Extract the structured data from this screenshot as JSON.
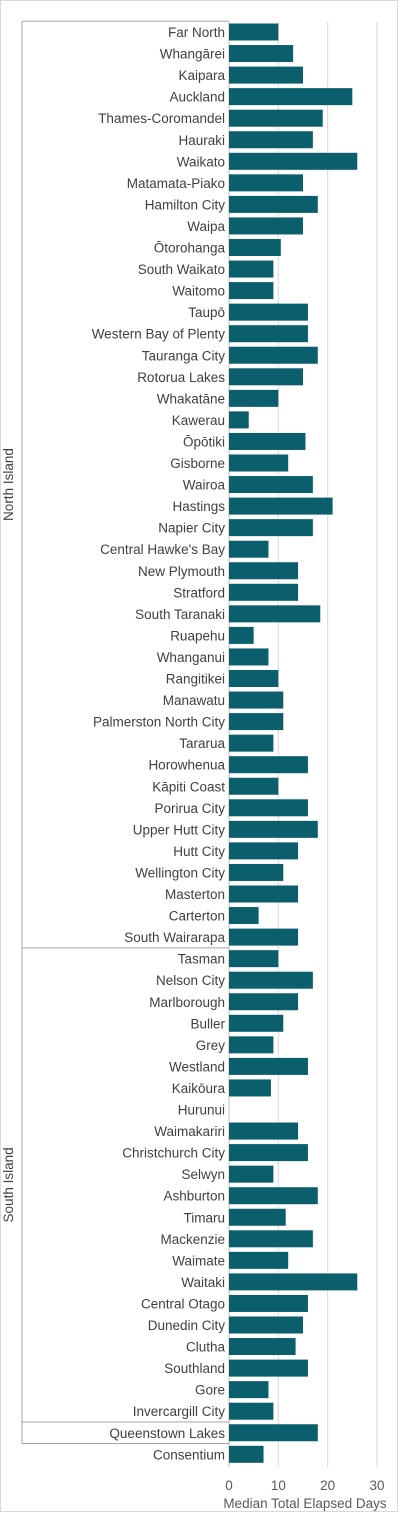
{
  "chart_data": {
    "type": "bar",
    "orientation": "horizontal",
    "xlabel": "Median Total Elapsed Days",
    "xlim": [
      0,
      30
    ],
    "xticks": [
      0,
      10,
      20,
      30
    ],
    "grid": true,
    "bar_color": "#0b5e6b",
    "groups": [
      {
        "name": "North Island",
        "start": 0,
        "end": 42
      },
      {
        "name": "South Island",
        "start": 43,
        "end": 64
      },
      {
        "name": "",
        "start": 65,
        "end": 65
      }
    ],
    "categories": [
      "Far North",
      "Whangārei",
      "Kaipara",
      "Auckland",
      "Thames-Coromandel",
      "Hauraki",
      "Waikato",
      "Matamata-Piako",
      "Hamilton City",
      "Waipa",
      "Ōtorohanga",
      "South Waikato",
      "Waitomo",
      "Taupō",
      "Western Bay of Plenty",
      "Tauranga City",
      "Rotorua Lakes",
      "Whakatāne",
      "Kawerau",
      "Ōpōtiki",
      "Gisborne",
      "Wairoa",
      "Hastings",
      "Napier City",
      "Central Hawke's Bay",
      "New Plymouth",
      "Stratford",
      "South Taranaki",
      "Ruapehu",
      "Whanganui",
      "Rangitikei",
      "Manawatu",
      "Palmerston North City",
      "Tararua",
      "Horowhenua",
      "Kāpiti Coast",
      "Porirua City",
      "Upper Hutt City",
      "Hutt City",
      "Wellington City",
      "Masterton",
      "Carterton",
      "South Wairarapa",
      "Tasman",
      "Nelson City",
      "Marlborough",
      "Buller",
      "Grey",
      "Westland",
      "Kaikōura",
      "Hurunui",
      "Waimakariri",
      "Christchurch City",
      "Selwyn",
      "Ashburton",
      "Timaru",
      "Mackenzie",
      "Waimate",
      "Waitaki",
      "Central Otago",
      "Dunedin City",
      "Clutha",
      "Southland",
      "Gore",
      "Invercargill City",
      "Queenstown Lakes",
      "Consentium"
    ],
    "values": [
      10,
      13,
      15,
      25,
      19,
      17,
      26,
      15,
      18,
      15,
      10.5,
      9,
      9,
      16,
      16,
      18,
      15,
      10,
      4,
      15.5,
      12,
      17,
      21,
      17,
      8,
      14,
      14,
      18.5,
      5,
      8,
      10,
      11,
      11,
      9,
      16,
      10,
      16,
      18,
      14,
      11,
      14,
      6,
      14,
      10,
      17,
      14,
      11,
      9,
      16,
      8.5,
      null,
      14,
      16,
      9,
      18,
      11.5,
      17,
      12,
      26,
      16,
      15,
      13.5,
      16,
      8,
      9,
      18,
      7
    ]
  }
}
